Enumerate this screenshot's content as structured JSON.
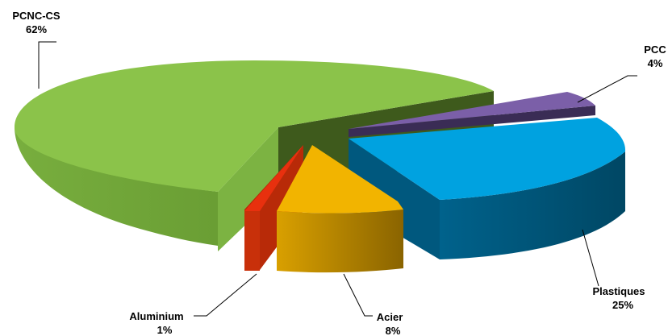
{
  "chart_data": {
    "type": "pie",
    "title": "",
    "slices": [
      {
        "name": "PCNC-CS",
        "value": 62,
        "value_label": "62%",
        "color": "#8BC34A",
        "exploded": false
      },
      {
        "name": "PCC",
        "value": 4,
        "value_label": "4%",
        "color": "#7B5FA8",
        "exploded": true
      },
      {
        "name": "Plastiques",
        "value": 25,
        "value_label": "25%",
        "color": "#00A2E0",
        "exploded": true
      },
      {
        "name": "Acier",
        "value": 8,
        "value_label": "8%",
        "color": "#F2B400",
        "exploded": true
      },
      {
        "name": "Aluminium",
        "value": 1,
        "value_label": "1%",
        "color": "#E8300E",
        "exploded": true
      }
    ],
    "legend": "none",
    "style": "3d-exploded"
  }
}
